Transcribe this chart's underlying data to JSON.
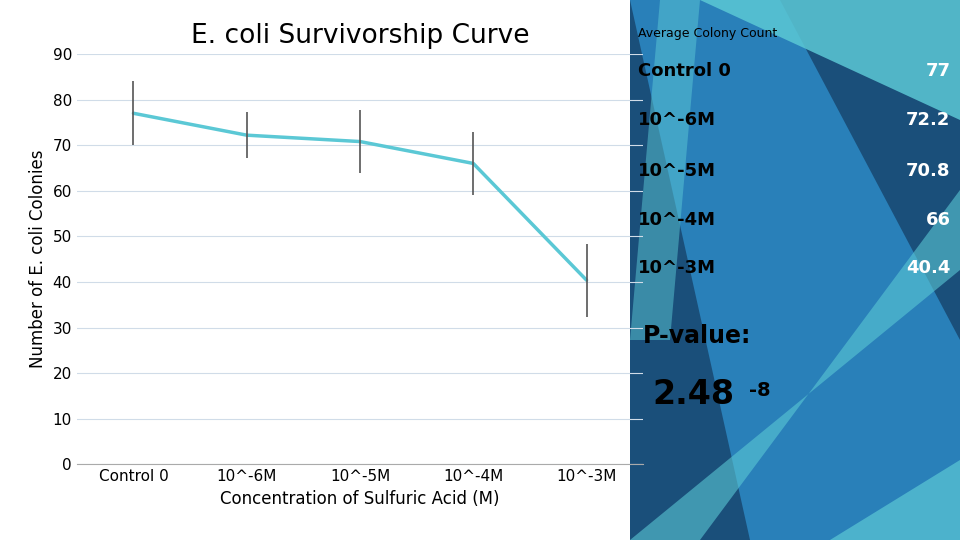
{
  "title": "E. coli Survivorship Curve",
  "xlabel": "Concentration of Sulfuric Acid (M)",
  "ylabel": "Number of E. coli Colonies",
  "categories": [
    "Control 0",
    "10^-6M",
    "10^-5M",
    "10^-4M",
    "10^-3M"
  ],
  "values": [
    77,
    72.2,
    70.8,
    66,
    40.4
  ],
  "error_bars": [
    7,
    5,
    7,
    7,
    8
  ],
  "ylim": [
    0,
    90
  ],
  "yticks": [
    0,
    10,
    20,
    30,
    40,
    50,
    60,
    70,
    80,
    90
  ],
  "line_color": "#5BC8D5",
  "background_color": "#ffffff",
  "grid_color": "#d0dce8",
  "title_fontsize": 19,
  "label_fontsize": 12,
  "tick_fontsize": 11,
  "legend_title": "Average Colony Count",
  "legend_labels": [
    "Control 0",
    "10^-6M",
    "10^-5M",
    "10^-4M",
    "10^-3M"
  ],
  "legend_values": [
    "77",
    "72.2",
    "70.8",
    "66",
    "40.4"
  ],
  "pvalue_text": "P-value:",
  "pvalue_num": "2.48",
  "pvalue_exp": "-8",
  "panel_dark": "#1a4f7a",
  "panel_mid": "#2980b9",
  "panel_light": "#5BC8D5"
}
